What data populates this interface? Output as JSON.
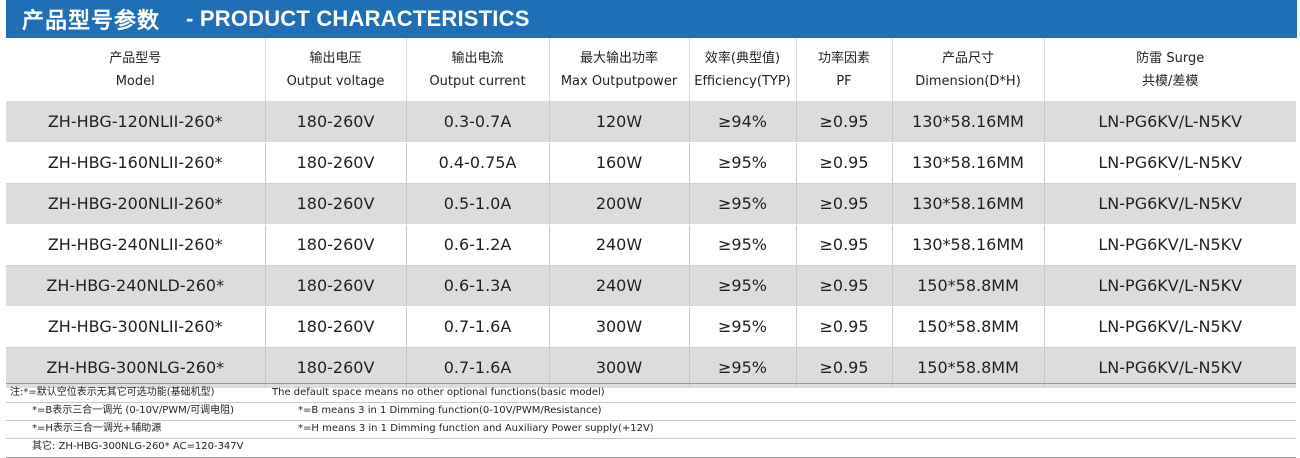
{
  "header": {
    "title_zh": "产品型号参数",
    "title_en": "- PRODUCT CHARACTERISTICS"
  },
  "table": {
    "headers": [
      {
        "zh": "产品型号",
        "en": "Model"
      },
      {
        "zh": "输出电压",
        "en": "Output voltage"
      },
      {
        "zh": "输出电流",
        "en": "Output current"
      },
      {
        "zh": "最大输出功率",
        "en": "Max Outputpower"
      },
      {
        "zh": "效率(典型值)",
        "en": "Efficiency(TYP)"
      },
      {
        "zh": "功率因素",
        "en": "PF"
      },
      {
        "zh": "产品尺寸",
        "en": "Dimension(D*H)"
      },
      {
        "zh": "防雷 Surge",
        "en": "共模/差模"
      }
    ],
    "rows": [
      [
        "ZH-HBG-120NLII-260*",
        "180-260V",
        "0.3-0.7A",
        "120W",
        "≥94%",
        "≥0.95",
        "130*58.16MM",
        "LN-PG6KV/L-N5KV"
      ],
      [
        "ZH-HBG-160NLII-260*",
        "180-260V",
        "0.4-0.75A",
        "160W",
        "≥95%",
        "≥0.95",
        "130*58.16MM",
        "LN-PG6KV/L-N5KV"
      ],
      [
        "ZH-HBG-200NLII-260*",
        "180-260V",
        "0.5-1.0A",
        "200W",
        "≥95%",
        "≥0.95",
        "130*58.16MM",
        "LN-PG6KV/L-N5KV"
      ],
      [
        "ZH-HBG-240NLII-260*",
        "180-260V",
        "0.6-1.2A",
        "240W",
        "≥95%",
        "≥0.95",
        "130*58.16MM",
        "LN-PG6KV/L-N5KV"
      ],
      [
        "ZH-HBG-240NLD-260*",
        "180-260V",
        "0.6-1.3A",
        "240W",
        "≥95%",
        "≥0.95",
        "150*58.8MM",
        "LN-PG6KV/L-N5KV"
      ],
      [
        "ZH-HBG-300NLII-260*",
        "180-260V",
        "0.7-1.6A",
        "300W",
        "≥95%",
        "≥0.95",
        "150*58.8MM",
        "LN-PG6KV/L-N5KV"
      ],
      [
        "ZH-HBG-300NLG-260*",
        "180-260V",
        "0.7-1.6A",
        "300W",
        "≥95%",
        "≥0.95",
        "150*58.8MM",
        "LN-PG6KV/L-N5KV"
      ]
    ]
  },
  "notes": {
    "line1_zh": "注:*=默认空位表示无其它可选功能(基础机型)",
    "line1_en": "The default space means no other optional functions(basic model)",
    "line2_zh": "*=B表示三合一调光 (0-10V/PWM/可调电阻)",
    "line2_en": "*=B means 3 in 1 Dimming function(0-10V/PWM/Resistance)",
    "line3_zh": "*=H表示三合一调光+辅助源",
    "line3_en": "*=H means 3 in 1 Dimming function and Auxiliary Power supply(+12V)",
    "line4": "其它: ZH-HBG-300NLG-260* AC=120-347V"
  }
}
